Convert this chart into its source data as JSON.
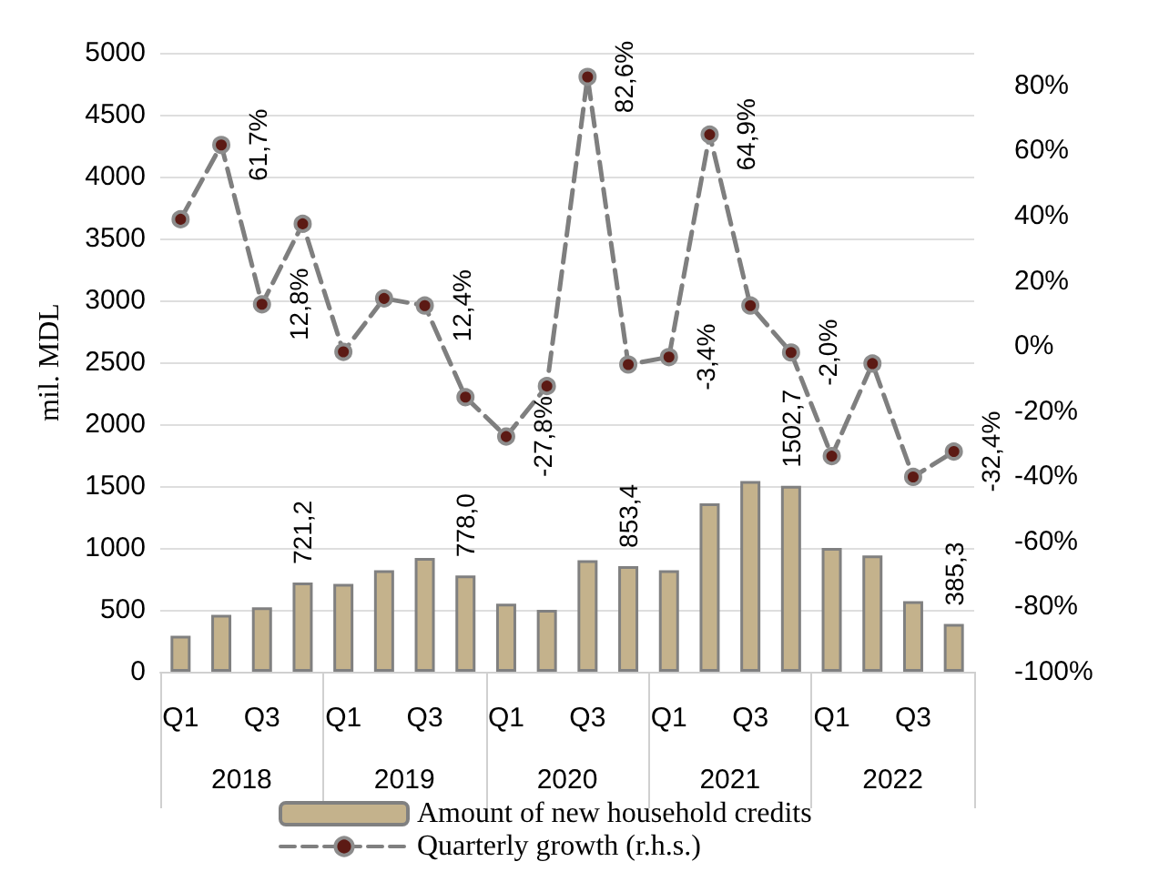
{
  "chart_data": {
    "type": "bar",
    "ylabel": "mil. MDL",
    "categories": [
      "Q1",
      null,
      "Q3",
      null,
      "Q1",
      null,
      "Q3",
      null,
      "Q1",
      null,
      "Q3",
      null,
      "Q1",
      null,
      "Q3",
      null,
      "Q1",
      null,
      "Q3",
      null
    ],
    "annotations": [
      "2018",
      "2019",
      "2020",
      "2021",
      "2022"
    ],
    "series": [
      {
        "name": "Amount of new household credits",
        "color": "#c4b28c",
        "values": [
          290,
          460,
          520,
          721.2,
          710,
          820,
          920,
          778.0,
          550,
          500,
          900,
          853.4,
          820,
          1360,
          1540,
          1502.7,
          1000,
          940,
          570,
          385.3
        ],
        "value_labels": [
          null,
          null,
          null,
          "721,2",
          null,
          null,
          null,
          "778,0",
          null,
          null,
          null,
          "853,4",
          null,
          null,
          null,
          "1502,7",
          null,
          null,
          null,
          "385,3"
        ]
      },
      {
        "name": "Quarterly growth (r.h.s.)",
        "type": "line",
        "axis": "y2",
        "color": "#7f7f7f",
        "marker": "circle",
        "line_style": "dashed",
        "values": [
          38.9,
          61.7,
          12.8,
          37.5,
          -1.8,
          14.6,
          12.4,
          -15.7,
          -27.8,
          -12.3,
          82.6,
          -5.7,
          -3.4,
          64.9,
          12.4,
          -2.0,
          -33.8,
          -5.4,
          -40.2,
          -32.4
        ],
        "value_labels": [
          null,
          "61,7%",
          "12,8%",
          null,
          null,
          null,
          "12,4%",
          null,
          "-27,8%",
          null,
          "82,6%",
          null,
          "-3,4%",
          "64,9%",
          null,
          "-2,0%",
          null,
          null,
          null,
          "-32,4%"
        ]
      }
    ],
    "ylim": [
      0,
      5000
    ],
    "yticks": [
      0,
      500,
      1000,
      1500,
      2000,
      2500,
      3000,
      3500,
      4000,
      4500,
      5000
    ],
    "y2lim": [
      -100,
      90
    ],
    "y2ticks": [
      {
        "value": -100,
        "label": "-100%"
      },
      {
        "value": -80,
        "label": "-80%"
      },
      {
        "value": -60,
        "label": "-60%"
      },
      {
        "value": -40,
        "label": "-40%"
      },
      {
        "value": -20,
        "label": "-20%"
      },
      {
        "value": 0,
        "label": "0%"
      },
      {
        "value": 20,
        "label": "20%"
      },
      {
        "value": 40,
        "label": "40%"
      },
      {
        "value": 60,
        "label": "60%"
      },
      {
        "value": 80,
        "label": "80%"
      }
    ],
    "grid": "y",
    "legend": "bottom"
  }
}
